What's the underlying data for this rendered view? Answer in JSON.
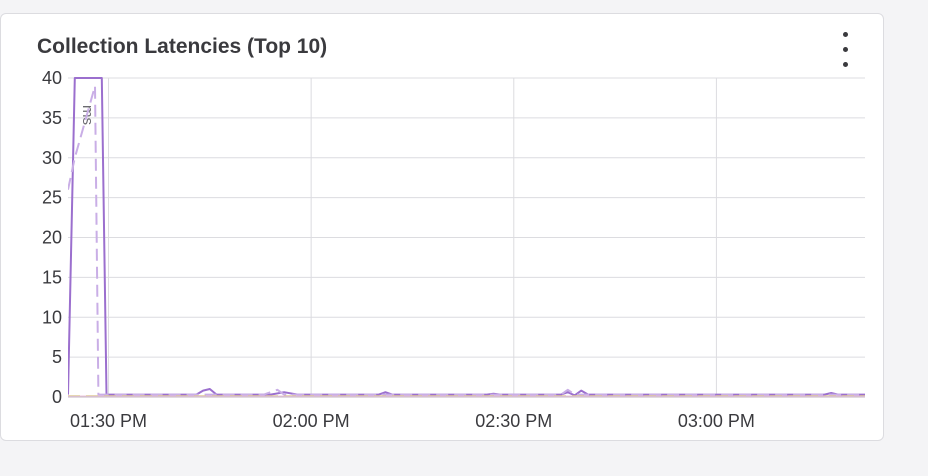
{
  "title": "Collection Latencies (Top 10)",
  "menu_icon": "kebab-menu-icon",
  "chart_data": {
    "type": "line",
    "title": "Collection Latencies (Top 10)",
    "ylabel": "ms",
    "xlabel": "",
    "ylim": [
      0,
      40
    ],
    "y_ticks": [
      "0",
      "5",
      "10",
      "15",
      "20",
      "25",
      "30",
      "35",
      "40"
    ],
    "x_tick_labels": [
      "01:30 PM",
      "02:00 PM",
      "02:30 PM",
      "03:00 PM"
    ],
    "grid": true,
    "x_unit": "minutes",
    "xlim": [
      1,
      119
    ],
    "series": [
      {
        "color": "#9b6fce",
        "dash": false,
        "points": [
          [
            1,
            0.3
          ],
          [
            2,
            40
          ],
          [
            6,
            40
          ],
          [
            6.7,
            0.3
          ],
          [
            20,
            0.3
          ],
          [
            21,
            0.8
          ],
          [
            22,
            1
          ],
          [
            23,
            0.3
          ],
          [
            31,
            0.3
          ],
          [
            33,
            0.6
          ],
          [
            35,
            0.3
          ],
          [
            47,
            0.3
          ],
          [
            48,
            0.6
          ],
          [
            49,
            0.3
          ],
          [
            63,
            0.3
          ],
          [
            64,
            0.4
          ],
          [
            65,
            0.3
          ],
          [
            74,
            0.3
          ],
          [
            75,
            0.6
          ],
          [
            76,
            0.2
          ],
          [
            77,
            0.8
          ],
          [
            78,
            0.3
          ],
          [
            95,
            0.3
          ],
          [
            97,
            0.3
          ],
          [
            113,
            0.3
          ],
          [
            114,
            0.5
          ],
          [
            115,
            0.3
          ],
          [
            119,
            0.3
          ]
        ]
      },
      {
        "color": "#c9aee6",
        "dash": true,
        "points": [
          [
            1,
            26
          ],
          [
            2,
            30
          ],
          [
            4,
            36
          ],
          [
            5,
            39
          ],
          [
            5.5,
            0.3
          ],
          [
            30,
            0.3
          ],
          [
            32,
            0.9
          ],
          [
            33,
            0.3
          ],
          [
            74,
            0.3
          ],
          [
            75,
            0.9
          ],
          [
            76,
            0.3
          ],
          [
            119,
            0.3
          ]
        ]
      },
      {
        "color": "#d8e063",
        "dash": true,
        "points": [
          [
            1,
            0.1
          ],
          [
            119,
            0.1
          ]
        ]
      },
      {
        "color": "#e6b3cf",
        "dash": false,
        "points": [
          [
            1,
            0.05
          ],
          [
            119,
            0.05
          ]
        ]
      }
    ]
  }
}
